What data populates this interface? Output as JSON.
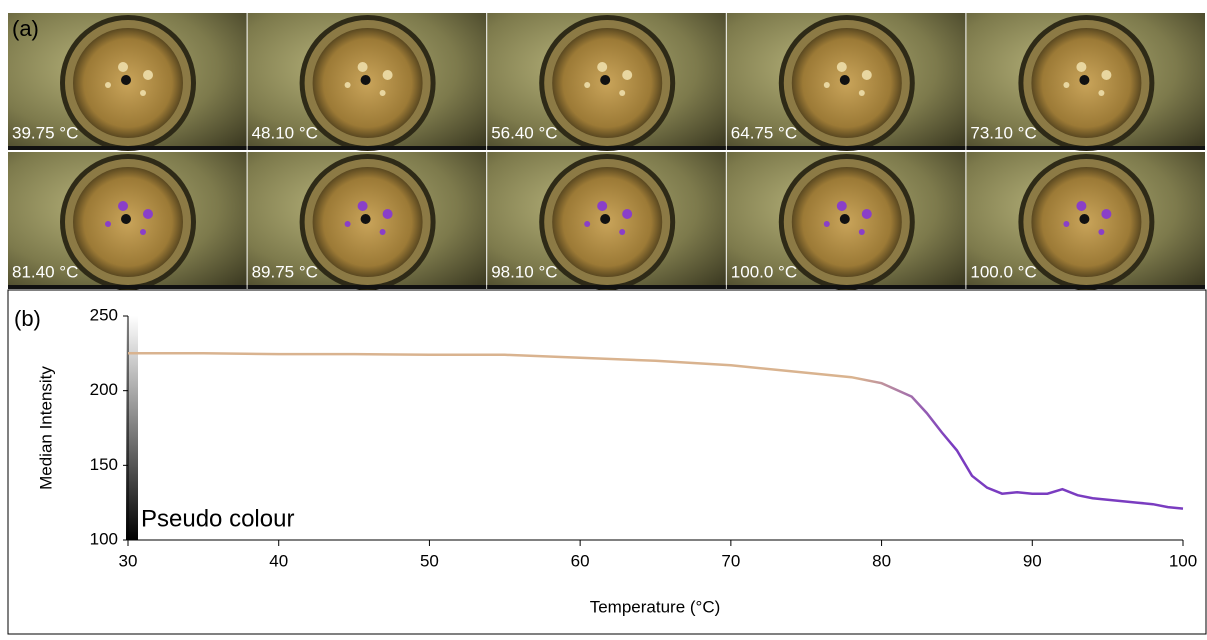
{
  "panel_a": {
    "label": "(a)",
    "frames": [
      "39.75 °C",
      "48.10 °C",
      "56.40 °C",
      "64.75 °C",
      "73.10 °C",
      "81.40 °C",
      "89.75 °C",
      "98.10 °C",
      "100.0 °C",
      "100.0 °C"
    ]
  },
  "chart_data": {
    "type": "line",
    "panel_label": "(b)",
    "x_label": "Temperature (°C)",
    "y_label": "Median  Intensity",
    "annotation": "Pseudo colour",
    "x": [
      30,
      35,
      40,
      45,
      50,
      55,
      60,
      65,
      70,
      75,
      78,
      80,
      82,
      83,
      84,
      85,
      86,
      87,
      88,
      89,
      90,
      91,
      92,
      93,
      94,
      95,
      96,
      97,
      98,
      99,
      100
    ],
    "series": [
      {
        "colors": [
          "#d9b38f",
          "#7a3cc0"
        ],
        "values": [
          225,
          225,
          224.5,
          224.5,
          224,
          224,
          222,
          220,
          217,
          212,
          209,
          205,
          196,
          185,
          172,
          160,
          143,
          135,
          131,
          132,
          131,
          131,
          134,
          130,
          128,
          127,
          126,
          125,
          124,
          122,
          121
        ]
      }
    ],
    "xlim": [
      30,
      100
    ],
    "xticks": [
      30,
      40,
      50,
      60,
      70,
      80,
      90,
      100
    ],
    "ylim": [
      100,
      250
    ],
    "yticks": [
      100,
      150,
      200,
      250
    ]
  }
}
